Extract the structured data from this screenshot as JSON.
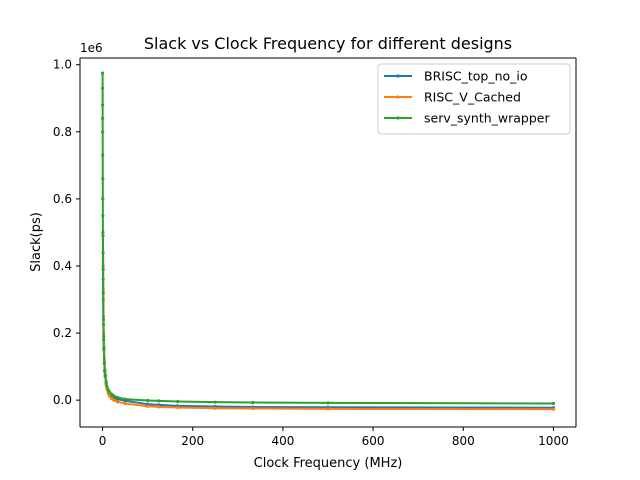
{
  "chart_data": {
    "type": "line",
    "title": "Slack vs Clock Frequency for different designs",
    "xlabel": "Clock Frequency (MHz)",
    "ylabel": "Slack(ps)",
    "y_offset_label": "1e6",
    "xlim": [
      -50,
      1050
    ],
    "ylim": [
      -80000,
      1020000
    ],
    "x_ticks": [
      0,
      200,
      400,
      600,
      800,
      1000
    ],
    "x_tick_labels": [
      "0",
      "200",
      "400",
      "600",
      "800",
      "1000"
    ],
    "y_ticks": [
      0,
      200000,
      400000,
      600000,
      800000,
      1000000
    ],
    "y_tick_labels": [
      "0.0",
      "0.2",
      "0.4",
      "0.6",
      "0.8",
      "1.0"
    ],
    "grid": false,
    "legend_position": "top-right",
    "series": [
      {
        "name": "BRISC_top_no_io",
        "color": "#1f77b4",
        "x": [
          1,
          1.25,
          1.5,
          2,
          2.5,
          3,
          4,
          5,
          6,
          8,
          10,
          12.5,
          15,
          20,
          25,
          33.3,
          50,
          100,
          125,
          166.7,
          250,
          333.3,
          500,
          1000
        ],
        "y": [
          490000,
          390000,
          320000,
          240000,
          190000,
          155000,
          110000,
          85000,
          70000,
          50000,
          37000,
          27000,
          20000,
          12000,
          7000,
          2500,
          -1500,
          -12000,
          -14000,
          -17000,
          -19000,
          -20500,
          -21000,
          -22500
        ]
      },
      {
        "name": "RISC_V_Cached",
        "color": "#ff7f0e",
        "x": [
          1,
          1.25,
          1.5,
          2,
          2.5,
          3,
          4,
          5,
          6,
          8,
          10,
          12.5,
          15,
          20,
          25,
          33.3,
          50,
          100,
          125,
          166.7,
          250,
          333.3,
          500,
          1000
        ],
        "y": [
          500000,
          400000,
          330000,
          250000,
          200000,
          160000,
          120000,
          90000,
          72000,
          45000,
          33000,
          20000,
          13000,
          5000,
          0,
          -5000,
          -10000,
          -18000,
          -20000,
          -22000,
          -24000,
          -25000,
          -26000,
          -27000
        ]
      },
      {
        "name": "serv_synth_wrapper",
        "color": "#2ca02c",
        "x": [
          0.1,
          0.15,
          0.2,
          0.25,
          0.3,
          0.4,
          0.5,
          0.6,
          0.7,
          0.8,
          1,
          1.25,
          1.5,
          2,
          2.5,
          3,
          4,
          5,
          6,
          8,
          10,
          12.5,
          15,
          20,
          25,
          33.3,
          50,
          100,
          125,
          166.7,
          250,
          333.3,
          500,
          1000
        ],
        "y": [
          975000,
          930000,
          880000,
          840000,
          800000,
          730000,
          660000,
          600000,
          550000,
          500000,
          440000,
          360000,
          300000,
          225000,
          180000,
          150000,
          110000,
          90000,
          75000,
          55000,
          40000,
          30000,
          25000,
          18000,
          13000,
          8000,
          3000,
          -1000,
          -2000,
          -4000,
          -6000,
          -7000,
          -8000,
          -10000
        ]
      }
    ]
  }
}
